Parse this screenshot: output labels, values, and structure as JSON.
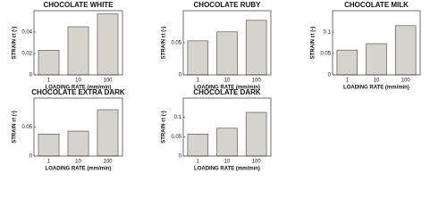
{
  "chart_data": [
    {
      "type": "bar",
      "title": "CHOCOLATE WHITE",
      "xlabel": "LOADING RATE (mm/min)",
      "ylabel": "STRAIN εt (-)",
      "categories": [
        "1",
        "10",
        "100"
      ],
      "values": [
        0.023,
        0.045,
        0.057
      ],
      "color": "#d6d3cc",
      "ylim": [
        0,
        0.06
      ],
      "yticks": [
        0,
        0.02,
        0.04
      ]
    },
    {
      "type": "bar",
      "title": "CHOCOLATE RUBY",
      "xlabel": "LOADING RATE (mm/min)",
      "ylabel": "STRAIN εt (-)",
      "categories": [
        "1",
        "10",
        "100"
      ],
      "values": [
        0.053,
        0.067,
        0.085
      ],
      "color": "#d6d3cc",
      "ylim": [
        0,
        0.1
      ],
      "yticks": [
        0,
        0.05
      ]
    },
    {
      "type": "bar",
      "title": "CHOCOLATE MILK",
      "xlabel": "LOADING RATE (mm/min)",
      "ylabel": "STRAIN εt (-)",
      "categories": [
        "1",
        "10",
        "100"
      ],
      "values": [
        0.058,
        0.073,
        0.115
      ],
      "color": "#d6d3cc",
      "ylim": [
        0,
        0.15
      ],
      "yticks": [
        0,
        0.05,
        0.1
      ]
    },
    {
      "type": "bar",
      "title": "CHOCOLATE EXTRA DARK",
      "xlabel": "LOADING RATE (mm/min)",
      "ylabel": "STRAIN εt (-)",
      "categories": [
        "1",
        "10",
        "100"
      ],
      "values": [
        0.038,
        0.043,
        0.08
      ],
      "color": "#d6d3cc",
      "ylim": [
        0,
        0.1
      ],
      "yticks": [
        0,
        0.05
      ]
    },
    {
      "type": "bar",
      "title": "CHOCOLATE DARK",
      "xlabel": "LOADING RATE (mm/min)",
      "ylabel": "STRAIN εt (-)",
      "categories": [
        "1",
        "10",
        "100"
      ],
      "values": [
        0.057,
        0.072,
        0.113
      ],
      "color": "#d6d3cc",
      "ylim": [
        0,
        0.15
      ],
      "yticks": [
        0,
        0.05,
        0.1
      ]
    }
  ]
}
